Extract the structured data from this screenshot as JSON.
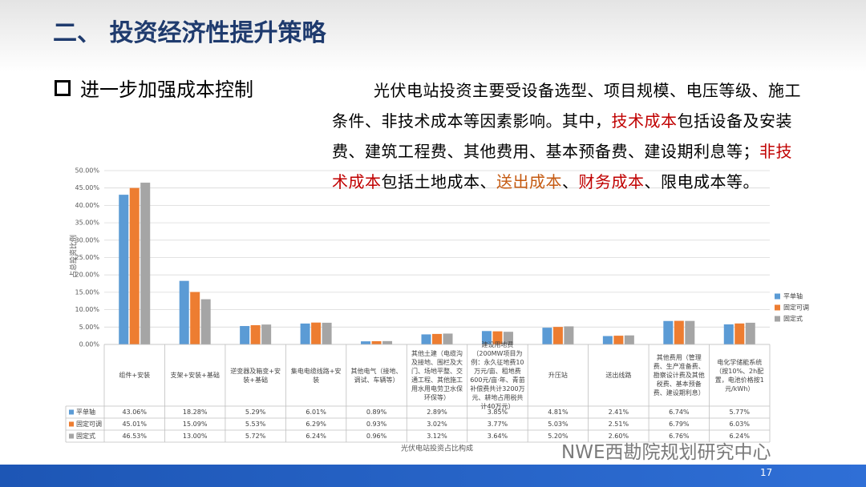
{
  "header": {
    "title": "二、 投资经济性提升策略"
  },
  "bullet": "进一步加强成本控制",
  "paragraph": {
    "segments": [
      {
        "text": "光伏电站投资主要受设备选型、项目规模、电压等级、施工条件、非技术成本等因素影响。其中，",
        "color": "#000000"
      },
      {
        "text": "技术成本",
        "color": "#c00000"
      },
      {
        "text": "包括设备及安装费、建筑工程费、其他费用、基本预备费、建设期利息等；",
        "color": "#000000"
      },
      {
        "text": "非技术成本",
        "color": "#c00000"
      },
      {
        "text": "包括土地成本、",
        "color": "#000000"
      },
      {
        "text": "送出成本",
        "color": "#c55a11"
      },
      {
        "text": "、",
        "color": "#000000"
      },
      {
        "text": "财务成本",
        "color": "#c00000"
      },
      {
        "text": "、限电成本等。",
        "color": "#000000"
      }
    ]
  },
  "chart_data": {
    "type": "bar",
    "x_label": "光伏电站投资占比构成",
    "y_label": "占总投资比例",
    "categories": [
      "组件+安装",
      "支架+安装+基础",
      "逆变器及箱变+安装+基础",
      "集电电缆线路+安装",
      "其他电气（接地、调试、车辆等）",
      "其他土建（电缆沟及接地、围栏及大门、场地平整、交通工程、其他施工用水用电劳卫水保环保等）",
      "建设用地费（200MW项目为例：永久征地费10万元/亩、租地费600元/亩·年、青苗补偿费共计3200万元、耕地占用税共计40万元）",
      "升压站",
      "送出线路",
      "其他费用（管理费、生产准备费、勘察设计费及其他税费、基本预备费、建设期利息）",
      "电化学储能系统（按10%、2h配置，电池价格按1元/kWh）"
    ],
    "series": [
      {
        "name": "平单轴",
        "color": "#5b9bd5",
        "values": [
          43.06,
          18.28,
          5.29,
          6.01,
          0.89,
          2.89,
          3.85,
          4.81,
          2.41,
          6.74,
          5.77
        ],
        "value_labels": [
          "43.06%",
          "18.28%",
          "5.29%",
          "6.01%",
          "0.89%",
          "2.89%",
          "3.85%",
          "4.81%",
          "2.41%",
          "6.74%",
          "5.77%"
        ]
      },
      {
        "name": "固定可调",
        "color": "#ed7d31",
        "values": [
          45.01,
          15.09,
          5.53,
          6.29,
          0.93,
          3.02,
          3.77,
          5.03,
          2.51,
          6.79,
          6.03
        ],
        "value_labels": [
          "45.01%",
          "15.09%",
          "5.53%",
          "6.29%",
          "0.93%",
          "3.02%",
          "3.77%",
          "5.03%",
          "2.51%",
          "6.79%",
          "6.03%"
        ]
      },
      {
        "name": "固定式",
        "color": "#a5a5a5",
        "values": [
          46.53,
          13.0,
          5.72,
          6.24,
          0.96,
          3.12,
          3.64,
          5.2,
          2.6,
          6.76,
          6.24
        ],
        "value_labels": [
          "46.53%",
          "13.00%",
          "5.72%",
          "6.24%",
          "0.96%",
          "3.12%",
          "3.64%",
          "5.20%",
          "2.60%",
          "6.76%",
          "6.24%"
        ]
      }
    ],
    "ylim": [
      0,
      50
    ],
    "yticks": [
      {
        "value": 0,
        "label": "0.00%"
      },
      {
        "value": 5,
        "label": "5.00%"
      },
      {
        "value": 10,
        "label": "10.00%"
      },
      {
        "value": 15,
        "label": "15.00%"
      },
      {
        "value": 20,
        "label": "20.00%"
      },
      {
        "value": 25,
        "label": "25.00%"
      },
      {
        "value": 30,
        "label": "30.00%"
      },
      {
        "value": 35,
        "label": "35.00%"
      },
      {
        "value": 40,
        "label": "40.00%"
      },
      {
        "value": 45,
        "label": "45.00%"
      },
      {
        "value": 50,
        "label": "50.00%"
      }
    ],
    "grid": true,
    "legend": "right"
  },
  "watermark": "NWE西勘院规划研究中心",
  "footer": {
    "page": "17"
  }
}
